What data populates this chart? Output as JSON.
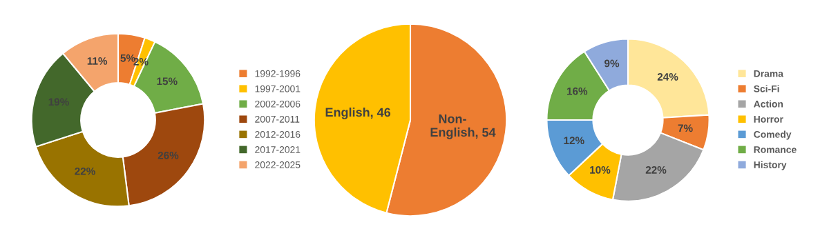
{
  "chart_data": [
    {
      "type": "donut",
      "categories": [
        "1992-1996",
        "1997-2001",
        "2002-2006",
        "2007-2011",
        "2012-2016",
        "2017-2021",
        "2022-2025"
      ],
      "values": [
        5,
        2,
        15,
        26,
        22,
        19,
        11
      ],
      "colors": [
        "#ed7d31",
        "#ffc000",
        "#70ad47",
        "#9e480e",
        "#997300",
        "#43682b",
        "#f4a46c"
      ],
      "value_labels": [
        "5%",
        "2%",
        "15%",
        "26%",
        "22%",
        "19%",
        "11%"
      ],
      "legend": "right"
    },
    {
      "type": "pie",
      "categories": [
        "Non-English",
        "English"
      ],
      "values": [
        54,
        46
      ],
      "colors": [
        "#ed7d31",
        "#ffc000"
      ],
      "data_labels": true,
      "annotations": [
        ",",
        ","
      ],
      "legend": false
    },
    {
      "type": "donut",
      "categories": [
        "Drama",
        "Sci-Fi",
        "Action",
        "Horror",
        "Comedy",
        "Romance",
        "History"
      ],
      "values": [
        24,
        7,
        22,
        10,
        12,
        16,
        9
      ],
      "colors": [
        "#ffe699",
        "#ed7d31",
        "#a5a5a5",
        "#ffc000",
        "#5b9bd5",
        "#70ad47",
        "#8faadc"
      ],
      "value_labels": [
        "24%",
        "7%",
        "22%",
        "10%",
        "12%",
        "16%",
        "9%"
      ],
      "legend": "right"
    }
  ]
}
